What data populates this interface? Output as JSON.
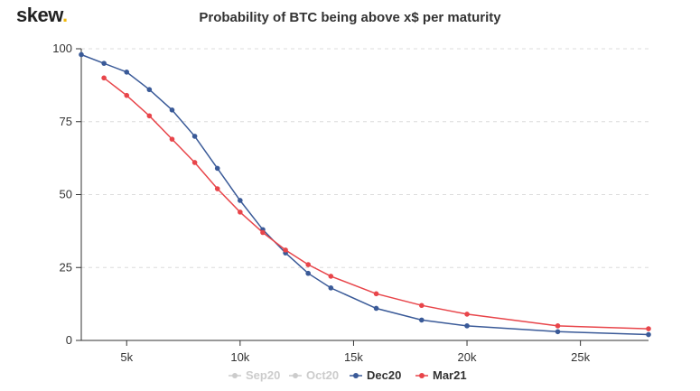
{
  "brand": {
    "name": "skew",
    "dot": ".",
    "dot_color": "#f0b90b"
  },
  "chart_data": {
    "type": "line",
    "title": "Probability of BTC being above x$ per maturity",
    "xlabel": "",
    "ylabel": "",
    "xlim": [
      3000,
      28000
    ],
    "ylim": [
      0,
      100
    ],
    "xticks": [
      {
        "value": 5000,
        "label": "5k"
      },
      {
        "value": 10000,
        "label": "10k"
      },
      {
        "value": 15000,
        "label": "15k"
      },
      {
        "value": 20000,
        "label": "20k"
      },
      {
        "value": 25000,
        "label": "25k"
      }
    ],
    "yticks": [
      {
        "value": 0,
        "label": "0"
      },
      {
        "value": 25,
        "label": "25"
      },
      {
        "value": 50,
        "label": "50"
      },
      {
        "value": 75,
        "label": "75"
      },
      {
        "value": 100,
        "label": "100"
      }
    ],
    "grid": "horizontal-dashed",
    "legend_position": "bottom-center",
    "series": [
      {
        "name": "Sep20",
        "color": "#cccccc",
        "visible": false,
        "x": [],
        "y": []
      },
      {
        "name": "Oct20",
        "color": "#cccccc",
        "visible": false,
        "x": [],
        "y": []
      },
      {
        "name": "Dec20",
        "color": "#3a5a98",
        "visible": true,
        "x": [
          3000,
          4000,
          5000,
          6000,
          7000,
          8000,
          9000,
          10000,
          11000,
          12000,
          13000,
          14000,
          16000,
          18000,
          20000,
          24000,
          28000
        ],
        "y": [
          98,
          95,
          92,
          86,
          79,
          70,
          59,
          48,
          38,
          30,
          23,
          18,
          11,
          7,
          5,
          3,
          2
        ]
      },
      {
        "name": "Mar21",
        "color": "#e8454a",
        "visible": true,
        "x": [
          4000,
          5000,
          6000,
          7000,
          8000,
          9000,
          10000,
          11000,
          12000,
          13000,
          14000,
          16000,
          18000,
          20000,
          24000,
          28000
        ],
        "y": [
          90,
          84,
          77,
          69,
          61,
          52,
          44,
          37,
          31,
          26,
          22,
          16,
          12,
          9,
          5,
          4
        ]
      }
    ]
  }
}
